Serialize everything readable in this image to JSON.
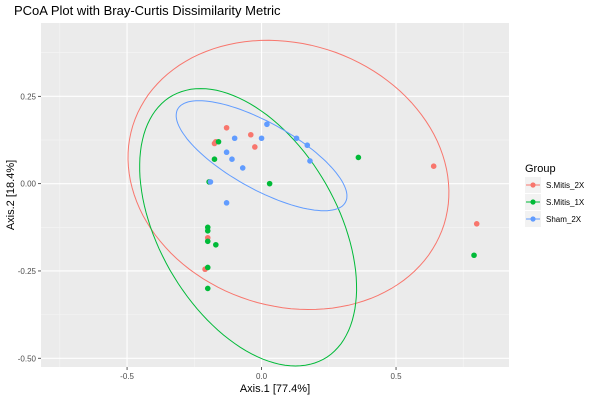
{
  "chart_data": {
    "type": "scatter",
    "title": "PCoA Plot with Bray-Curtis Dissimilarity Metric",
    "xlabel": "Axis.1   [77.4%]",
    "ylabel": "Axis.2   [18.4%]",
    "xlim": [
      -0.82,
      0.92
    ],
    "ylim": [
      -0.525,
      0.46
    ],
    "x_ticks": [
      -0.5,
      0.0,
      0.5
    ],
    "x_tick_labels": [
      "-0.5",
      "0.0",
      "0.5"
    ],
    "y_ticks": [
      -0.5,
      -0.25,
      0.0,
      0.25
    ],
    "y_tick_labels": [
      "-0.50",
      "-0.25",
      "0.00",
      "0.25"
    ],
    "grid": true,
    "background": "#ebebeb",
    "legend": {
      "title": "Group",
      "position": "right",
      "entries": [
        "S.Mitis_2X",
        "S.Mitis_1X",
        "Sham_2X"
      ]
    },
    "series": [
      {
        "name": "S.Mitis_2X",
        "color": "#f8766d",
        "points": [
          [
            -0.13,
            0.16
          ],
          [
            -0.04,
            0.14
          ],
          [
            -0.17,
            0.12
          ],
          [
            -0.175,
            0.115
          ],
          [
            -0.025,
            0.105
          ],
          [
            0.64,
            0.05
          ],
          [
            -0.2,
            -0.155
          ],
          [
            0.8,
            -0.115
          ],
          [
            -0.21,
            -0.245
          ]
        ],
        "ellipse": {
          "center": [
            0.1,
            0.025
          ],
          "rx": 0.6,
          "ry": 0.38,
          "angle": -8
        }
      },
      {
        "name": "S.Mitis_1X",
        "color": "#00ba38",
        "points": [
          [
            -0.16,
            0.12
          ],
          [
            -0.175,
            0.07
          ],
          [
            0.36,
            0.075
          ],
          [
            -0.195,
            0.005
          ],
          [
            0.03,
            0.0
          ],
          [
            -0.2,
            -0.125
          ],
          [
            -0.2,
            -0.135
          ],
          [
            -0.2,
            -0.165
          ],
          [
            -0.17,
            -0.175
          ],
          [
            -0.2,
            -0.24
          ],
          [
            0.79,
            -0.205
          ],
          [
            -0.2,
            -0.3
          ]
        ],
        "ellipse": {
          "center": [
            -0.05,
            -0.125
          ],
          "rx": 0.48,
          "ry": 0.3,
          "angle": -44
        }
      },
      {
        "name": "Sham_2X",
        "color": "#619cff",
        "points": [
          [
            0.02,
            0.17
          ],
          [
            -0.1,
            0.13
          ],
          [
            0.13,
            0.13
          ],
          [
            0.0,
            0.13
          ],
          [
            0.17,
            0.11
          ],
          [
            -0.13,
            0.09
          ],
          [
            -0.11,
            0.07
          ],
          [
            0.18,
            0.065
          ],
          [
            -0.07,
            0.045
          ],
          [
            -0.19,
            0.005
          ],
          [
            -0.13,
            -0.055
          ]
        ],
        "ellipse": {
          "center": [
            0.0,
            0.08
          ],
          "rx": 0.34,
          "ry": 0.1,
          "angle": -22
        }
      }
    ]
  }
}
